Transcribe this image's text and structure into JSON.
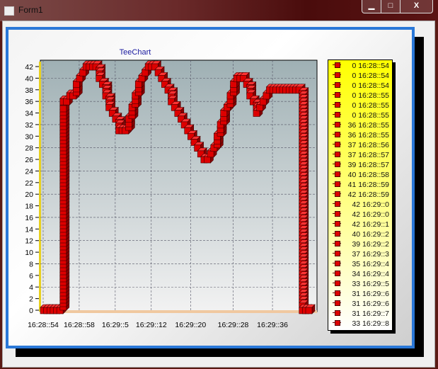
{
  "window": {
    "title": "Form1",
    "minimize": "▁",
    "maximize": "□",
    "close": "X"
  },
  "colors": {
    "series": "#cc0000",
    "panel_border": "#2a78d8",
    "legend_bg": "#ffff00",
    "title": "#1a1aa0"
  },
  "chart_data": {
    "type": "line",
    "style": "3d-points",
    "title": "TeeChart",
    "xlabel": "",
    "ylabel": "",
    "ylim": [
      0,
      42
    ],
    "yticks": [
      0,
      2,
      4,
      6,
      8,
      10,
      12,
      14,
      16,
      18,
      20,
      22,
      24,
      26,
      28,
      30,
      32,
      34,
      36,
      38,
      40,
      42
    ],
    "xtick_labels": [
      {
        "index": 0,
        "label": "16:28::54"
      },
      {
        "index": 11,
        "label": "16:28::58"
      },
      {
        "index": 22,
        "label": "16:29::5"
      },
      {
        "index": 33,
        "label": "16:29::12"
      },
      {
        "index": 45,
        "label": "16:29::20"
      },
      {
        "index": 58,
        "label": "16:29::28"
      },
      {
        "index": 70,
        "label": "16:29::36"
      }
    ],
    "grid": true,
    "legend_placement": "right",
    "values": [
      0,
      0,
      0,
      0,
      0,
      0,
      36,
      36,
      37,
      37,
      39,
      40,
      41,
      42,
      42,
      42,
      42,
      40,
      39,
      37,
      35,
      34,
      33,
      31,
      31,
      31,
      33,
      35,
      37,
      39,
      40,
      41,
      42,
      42,
      42,
      41,
      40,
      39,
      38,
      36,
      35,
      34,
      33,
      32,
      31,
      30,
      29,
      28,
      27,
      26,
      26,
      27,
      28,
      30,
      32,
      34,
      35,
      37,
      39,
      40,
      40,
      40,
      39,
      37,
      36,
      34,
      35,
      36,
      37,
      38,
      38,
      38,
      38,
      38,
      38,
      38,
      38,
      38,
      38,
      0,
      0,
      0
    ],
    "legend": [
      "0 16:28::54",
      "0 16:28::54",
      "0 16:28::54",
      "0 16:28::55",
      "0 16:28::55",
      "0 16:28::55",
      "36 16:28::55",
      "36 16:28::55",
      "37 16:28::56",
      "37 16:28::57",
      "39 16:28::57",
      "40 16:28::58",
      "41 16:28::59",
      "42 16:28::59",
      "42 16:29::0",
      "42 16:29::0",
      "42 16:29::1",
      "40 16:29::2",
      "39 16:29::2",
      "37 16:29::3",
      "35 16:29::4",
      "34 16:29::4",
      "33 16:29::5",
      "31 16:29::6",
      "31 16:29::6",
      "31 16:29::7",
      "33 16:29::8"
    ]
  }
}
